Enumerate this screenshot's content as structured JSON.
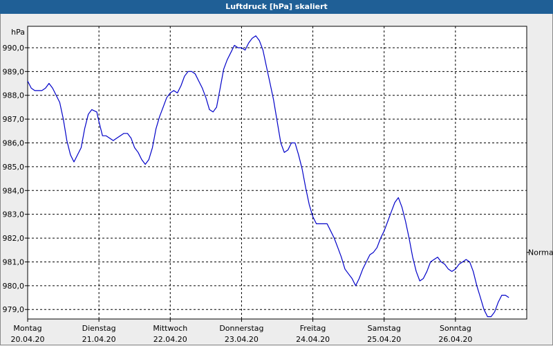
{
  "title": "Luftdruck [hPa] skaliert",
  "chart_data": {
    "type": "line",
    "title": "Luftdruck [hPa] skaliert",
    "ylabel": "hPa",
    "ylim": [
      978.6,
      990.9
    ],
    "yticks": [
      979.0,
      980.0,
      981.0,
      982.0,
      983.0,
      984.0,
      985.0,
      986.0,
      987.0,
      988.0,
      989.0,
      990.0
    ],
    "ytick_labels": [
      "979,0",
      "980,0",
      "981,0",
      "982,0",
      "983,0",
      "984,0",
      "985,0",
      "986,0",
      "987,0",
      "988,0",
      "989,0",
      "990,0"
    ],
    "xlim": [
      0,
      7
    ],
    "xticks": [
      {
        "day": "Montag",
        "date": "20.04.20"
      },
      {
        "day": "Dienstag",
        "date": "21.04.20"
      },
      {
        "day": "Mittwoch",
        "date": "22.04.20"
      },
      {
        "day": "Donnerstag",
        "date": "23.04.20"
      },
      {
        "day": "Freitag",
        "date": "24.04.20"
      },
      {
        "day": "Samstag",
        "date": "25.04.20"
      },
      {
        "day": "Sonntag",
        "date": "26.04.20"
      }
    ],
    "normal_label": "Normal",
    "normal_value": 981.4,
    "grid": true,
    "series": [
      {
        "color": "#0000c8",
        "points": [
          [
            0.0,
            988.6
          ],
          [
            0.05,
            988.3
          ],
          [
            0.1,
            988.2
          ],
          [
            0.2,
            988.2
          ],
          [
            0.25,
            988.3
          ],
          [
            0.3,
            988.5
          ],
          [
            0.35,
            988.3
          ],
          [
            0.45,
            987.7
          ],
          [
            0.5,
            987.0
          ],
          [
            0.55,
            986.1
          ],
          [
            0.6,
            985.5
          ],
          [
            0.65,
            985.2
          ],
          [
            0.75,
            985.8
          ],
          [
            0.8,
            986.6
          ],
          [
            0.85,
            987.2
          ],
          [
            0.9,
            987.4
          ],
          [
            0.97,
            987.3
          ],
          [
            1.0,
            986.9
          ],
          [
            1.05,
            986.3
          ],
          [
            1.1,
            986.3
          ],
          [
            1.2,
            986.1
          ],
          [
            1.25,
            986.2
          ],
          [
            1.35,
            986.4
          ],
          [
            1.4,
            986.4
          ],
          [
            1.45,
            986.2
          ],
          [
            1.5,
            985.8
          ],
          [
            1.55,
            985.6
          ],
          [
            1.6,
            985.3
          ],
          [
            1.65,
            985.1
          ],
          [
            1.7,
            985.3
          ],
          [
            1.75,
            985.8
          ],
          [
            1.8,
            986.6
          ],
          [
            1.85,
            987.1
          ],
          [
            1.9,
            987.5
          ],
          [
            1.95,
            987.9
          ],
          [
            2.0,
            988.1
          ],
          [
            2.05,
            988.2
          ],
          [
            2.1,
            988.1
          ],
          [
            2.15,
            988.4
          ],
          [
            2.2,
            988.8
          ],
          [
            2.25,
            989.0
          ],
          [
            2.3,
            989.0
          ],
          [
            2.35,
            988.9
          ],
          [
            2.4,
            988.6
          ],
          [
            2.45,
            988.3
          ],
          [
            2.5,
            987.9
          ],
          [
            2.55,
            987.4
          ],
          [
            2.6,
            987.3
          ],
          [
            2.65,
            987.5
          ],
          [
            2.7,
            988.3
          ],
          [
            2.75,
            989.1
          ],
          [
            2.8,
            989.5
          ],
          [
            2.85,
            989.8
          ],
          [
            2.9,
            990.1
          ],
          [
            2.95,
            990.0
          ],
          [
            3.0,
            990.0
          ],
          [
            3.05,
            989.9
          ],
          [
            3.1,
            990.2
          ],
          [
            3.15,
            990.4
          ],
          [
            3.2,
            990.5
          ],
          [
            3.25,
            990.3
          ],
          [
            3.3,
            989.9
          ],
          [
            3.35,
            989.2
          ],
          [
            3.4,
            988.5
          ],
          [
            3.45,
            987.8
          ],
          [
            3.5,
            986.9
          ],
          [
            3.55,
            986.0
          ],
          [
            3.6,
            985.6
          ],
          [
            3.65,
            985.7
          ],
          [
            3.7,
            986.0
          ],
          [
            3.75,
            986.0
          ],
          [
            3.8,
            985.5
          ],
          [
            3.85,
            984.9
          ],
          [
            3.9,
            984.1
          ],
          [
            3.95,
            983.4
          ],
          [
            4.0,
            982.9
          ],
          [
            4.05,
            982.6
          ],
          [
            4.1,
            982.6
          ],
          [
            4.2,
            982.6
          ],
          [
            4.25,
            982.3
          ],
          [
            4.3,
            982.0
          ],
          [
            4.35,
            981.6
          ],
          [
            4.4,
            981.2
          ],
          [
            4.45,
            980.7
          ],
          [
            4.5,
            980.5
          ],
          [
            4.55,
            980.3
          ],
          [
            4.6,
            980.0
          ],
          [
            4.65,
            980.3
          ],
          [
            4.7,
            980.7
          ],
          [
            4.75,
            981.0
          ],
          [
            4.8,
            981.3
          ],
          [
            4.85,
            981.4
          ],
          [
            4.9,
            981.6
          ],
          [
            4.95,
            982.0
          ],
          [
            5.0,
            982.3
          ],
          [
            5.05,
            982.7
          ],
          [
            5.1,
            983.1
          ],
          [
            5.15,
            983.5
          ],
          [
            5.2,
            983.7
          ],
          [
            5.25,
            983.3
          ],
          [
            5.3,
            982.7
          ],
          [
            5.35,
            982.0
          ],
          [
            5.4,
            981.2
          ],
          [
            5.45,
            980.6
          ],
          [
            5.5,
            980.2
          ],
          [
            5.55,
            980.3
          ],
          [
            5.6,
            980.6
          ],
          [
            5.65,
            981.0
          ],
          [
            5.7,
            981.1
          ],
          [
            5.75,
            981.2
          ],
          [
            5.8,
            981.0
          ],
          [
            5.85,
            980.9
          ],
          [
            5.9,
            980.7
          ],
          [
            5.95,
            980.6
          ],
          [
            6.0,
            980.7
          ],
          [
            6.05,
            980.9
          ],
          [
            6.1,
            981.0
          ],
          [
            6.15,
            981.1
          ],
          [
            6.2,
            981.0
          ],
          [
            6.25,
            980.6
          ],
          [
            6.3,
            980.0
          ],
          [
            6.35,
            979.5
          ],
          [
            6.4,
            979.0
          ],
          [
            6.45,
            978.7
          ],
          [
            6.5,
            978.7
          ],
          [
            6.55,
            978.9
          ],
          [
            6.6,
            979.3
          ],
          [
            6.65,
            979.6
          ],
          [
            6.7,
            979.6
          ],
          [
            6.75,
            979.5
          ]
        ]
      }
    ]
  }
}
